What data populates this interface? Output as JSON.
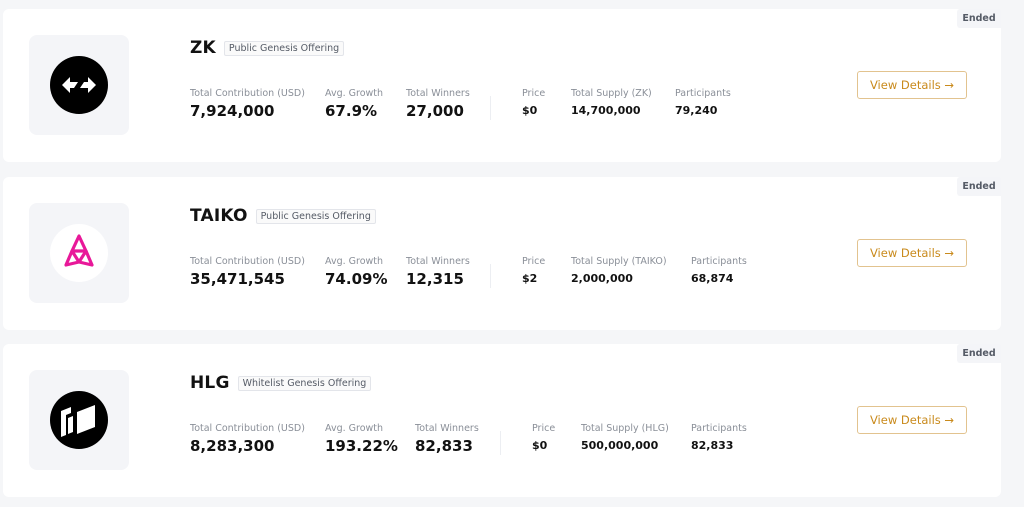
{
  "offerings": [
    {
      "name": "ZK",
      "type": "Public Genesis Offering",
      "status": "Ended",
      "logo_icon": "zk-arrows-icon",
      "total_contribution_label": "Total Contribution (USD)",
      "total_contribution": "7,924,000",
      "avg_growth_label": "Avg. Growth",
      "avg_growth": "67.9%",
      "total_winners_label": "Total Winners",
      "total_winners": "27,000",
      "price_label": "Price",
      "price": "$0",
      "total_supply_label": "Total Supply (ZK)",
      "total_supply": "14,700,000",
      "participants_label": "Participants",
      "participants": "79,240",
      "button_label": "View Details →"
    },
    {
      "name": "TAIKO",
      "type": "Public Genesis Offering",
      "status": "Ended",
      "logo_icon": "taiko-triangle-icon",
      "total_contribution_label": "Total Contribution (USD)",
      "total_contribution": "35,471,545",
      "avg_growth_label": "Avg. Growth",
      "avg_growth": "74.09%",
      "total_winners_label": "Total Winners",
      "total_winners": "12,315",
      "price_label": "Price",
      "price": "$2",
      "total_supply_label": "Total Supply (TAIKO)",
      "total_supply": "2,000,000",
      "participants_label": "Participants",
      "participants": "68,874",
      "button_label": "View Details →"
    },
    {
      "name": "HLG",
      "type": "Whitelist Genesis Offering",
      "status": "Ended",
      "logo_icon": "hlg-panels-icon",
      "total_contribution_label": "Total Contribution (USD)",
      "total_contribution": "8,283,300",
      "avg_growth_label": "Avg. Growth",
      "avg_growth": "193.22%",
      "total_winners_label": "Total Winners",
      "total_winners": "82,833",
      "price_label": "Price",
      "price": "$0",
      "total_supply_label": "Total Supply (HLG)",
      "total_supply": "500,000,000",
      "participants_label": "Participants",
      "participants": "82,833",
      "button_label": "View Details →"
    }
  ],
  "colors": {
    "accent": "#c98a1c",
    "accent_border": "#e2c38f",
    "taiko_pink": "#e81899",
    "page_bg": "#f5f6f8"
  }
}
